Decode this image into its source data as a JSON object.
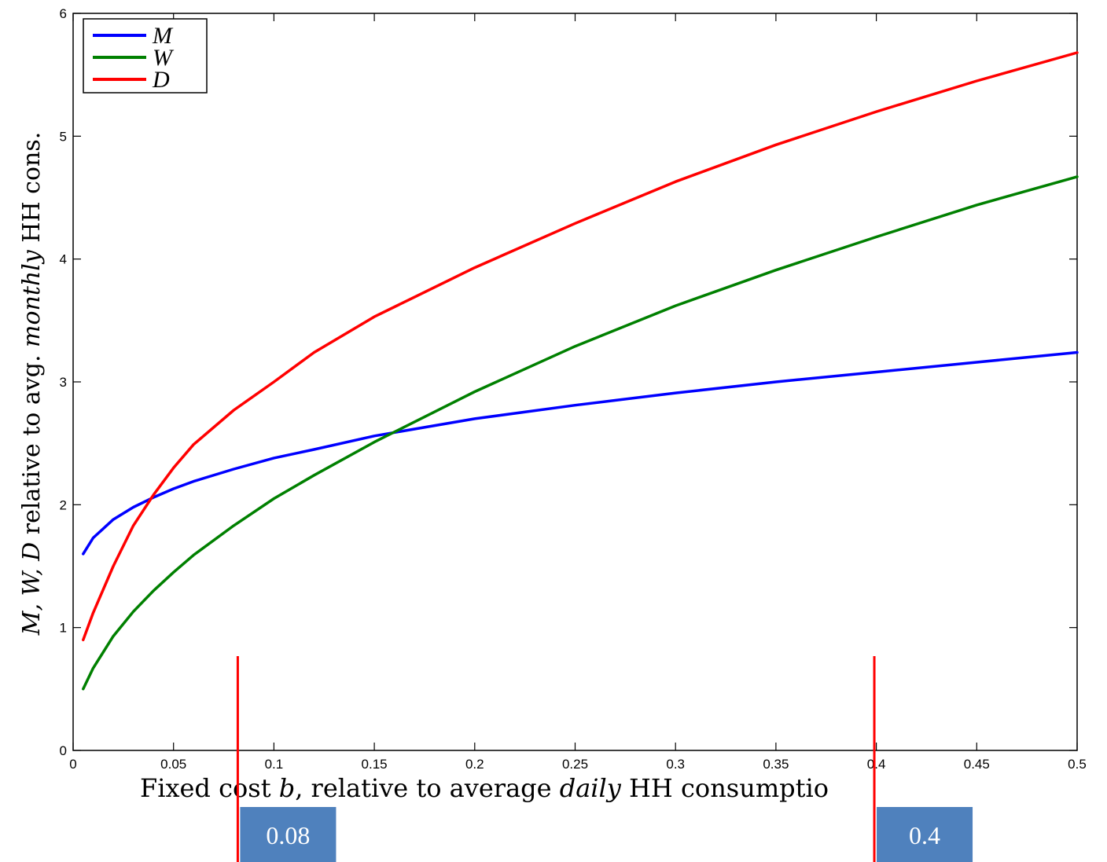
{
  "chart_data": {
    "type": "line",
    "title": "",
    "xlabel_parts": [
      "Fixed cost ",
      "b",
      ", relative to average ",
      "daily",
      " HH consumptio"
    ],
    "ylabel_parts": [
      "M, W, D",
      " relative to avg. ",
      "monthly",
      " HH cons."
    ],
    "xlim": [
      0,
      0.5
    ],
    "ylim": [
      0,
      6
    ],
    "grid": false,
    "legend_placement": "top-left",
    "xticks": [
      {
        "value": 0,
        "label": "0"
      },
      {
        "value": 0.05,
        "label": "0.05"
      },
      {
        "value": 0.1,
        "label": "0.1"
      },
      {
        "value": 0.15,
        "label": "0.15"
      },
      {
        "value": 0.2,
        "label": "0.2"
      },
      {
        "value": 0.25,
        "label": "0.25"
      },
      {
        "value": 0.3,
        "label": "0.3"
      },
      {
        "value": 0.35,
        "label": "0.35"
      },
      {
        "value": 0.4,
        "label": "0.4"
      },
      {
        "value": 0.45,
        "label": "0.45"
      },
      {
        "value": 0.5,
        "label": "0.5"
      }
    ],
    "yticks": [
      {
        "value": 0,
        "label": "0"
      },
      {
        "value": 1,
        "label": "1"
      },
      {
        "value": 2,
        "label": "2"
      },
      {
        "value": 3,
        "label": "3"
      },
      {
        "value": 4,
        "label": "4"
      },
      {
        "value": 5,
        "label": "5"
      },
      {
        "value": 6,
        "label": "6"
      }
    ],
    "series": [
      {
        "name": "M",
        "color": "#0000ff",
        "x": [
          0.005,
          0.01,
          0.02,
          0.03,
          0.04,
          0.05,
          0.06,
          0.08,
          0.1,
          0.12,
          0.15,
          0.2,
          0.25,
          0.3,
          0.35,
          0.4,
          0.45,
          0.5
        ],
        "y": [
          1.6,
          1.73,
          1.88,
          1.98,
          2.06,
          2.13,
          2.19,
          2.29,
          2.38,
          2.45,
          2.56,
          2.7,
          2.81,
          2.91,
          3.0,
          3.08,
          3.16,
          3.24
        ]
      },
      {
        "name": "W",
        "color": "#008000",
        "x": [
          0.005,
          0.01,
          0.02,
          0.03,
          0.04,
          0.05,
          0.06,
          0.08,
          0.1,
          0.12,
          0.15,
          0.2,
          0.25,
          0.3,
          0.35,
          0.4,
          0.45,
          0.5
        ],
        "y": [
          0.5,
          0.67,
          0.93,
          1.13,
          1.3,
          1.45,
          1.59,
          1.83,
          2.05,
          2.24,
          2.51,
          2.92,
          3.29,
          3.62,
          3.91,
          4.18,
          4.44,
          4.67
        ]
      },
      {
        "name": "D",
        "color": "#ff0000",
        "x": [
          0.005,
          0.01,
          0.02,
          0.03,
          0.04,
          0.05,
          0.06,
          0.08,
          0.1,
          0.12,
          0.15,
          0.2,
          0.25,
          0.3,
          0.35,
          0.4,
          0.45,
          0.5
        ],
        "y": [
          0.9,
          1.12,
          1.5,
          1.83,
          2.08,
          2.3,
          2.49,
          2.77,
          3.0,
          3.24,
          3.53,
          3.93,
          4.29,
          4.63,
          4.93,
          5.2,
          5.45,
          5.68
        ]
      }
    ],
    "annotations": [
      {
        "x": 0.082,
        "label": "0.08",
        "color": "#ff0000",
        "box_color": "#4f81bd"
      },
      {
        "x": 0.399,
        "label": "0.4",
        "color": "#ff0000",
        "box_color": "#4f81bd"
      }
    ]
  }
}
